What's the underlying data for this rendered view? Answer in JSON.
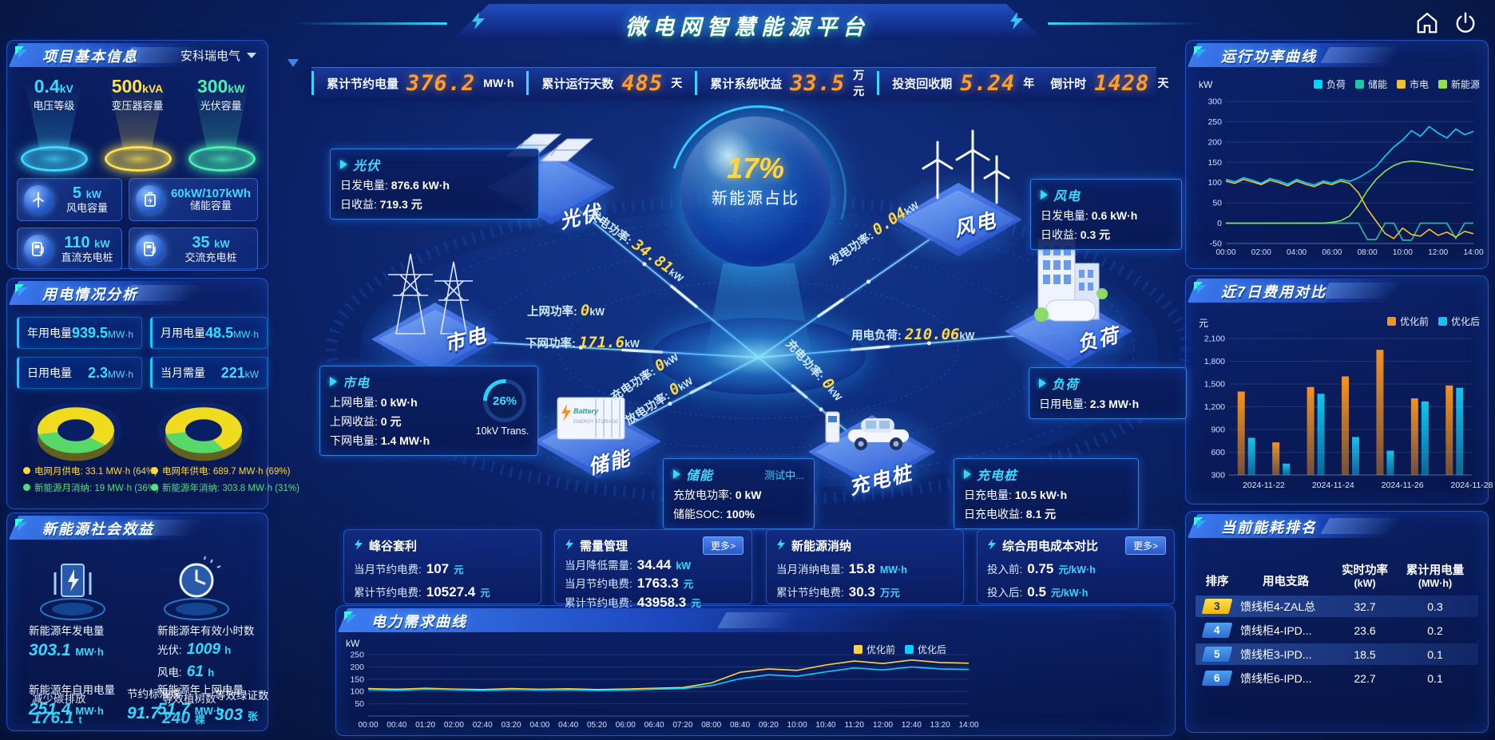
{
  "app": {
    "title": "微电网智慧能源平台"
  },
  "top_stats": [
    {
      "label": "累计节约电量",
      "value": "376.2",
      "unit": "MW·h"
    },
    {
      "label": "累计运行天数",
      "value": "485",
      "unit": "天"
    },
    {
      "label": "累计系统收益",
      "value": "33.5",
      "unit": "万元"
    },
    {
      "label": "投资回收期",
      "value": "5.24",
      "unit": "年"
    },
    {
      "label": "倒计时",
      "value": "1428",
      "unit": "天"
    }
  ],
  "project_info": {
    "title": "项目基本信息",
    "company": "安科瑞电气",
    "cones": [
      {
        "value": "0.4",
        "unit": "kV",
        "label": "电压等级",
        "color": "#3fd9ff"
      },
      {
        "value": "500",
        "unit": "kVA",
        "label": "变压器容量",
        "color": "#ffe24a"
      },
      {
        "value": "300",
        "unit": "kW",
        "label": "光伏容量",
        "color": "#49f2b2"
      }
    ],
    "cards": [
      {
        "icon": "wind-turbine-icon",
        "value": "5",
        "unit": "kW",
        "label": "风电容量"
      },
      {
        "icon": "battery-icon",
        "value": "60kW/107kWh",
        "unit": "",
        "label": "储能容量"
      },
      {
        "icon": "dc-charger-icon",
        "value": "110",
        "unit": "kW",
        "label": "直流充电桩"
      },
      {
        "icon": "ac-charger-icon",
        "value": "35",
        "unit": "kW",
        "label": "交流充电桩"
      }
    ]
  },
  "usage": {
    "title": "用电情况分析",
    "stats": [
      {
        "label": "年用电量",
        "value": "939.5",
        "unit": "MW·h"
      },
      {
        "label": "月用电量",
        "value": "48.5",
        "unit": "MW·h"
      },
      {
        "label": "日用电量",
        "value": "2.3",
        "unit": "MW·h"
      },
      {
        "label": "当月需量",
        "value": "221",
        "unit": "kW"
      }
    ],
    "donuts": [
      {
        "grid_pct": 64,
        "legend": [
          {
            "label": "电网月供电",
            "value": "33.1 MW·h (64%)",
            "color": "#ffd937"
          },
          {
            "label": "新能源月消纳",
            "value": "19 MW·h (36%)",
            "color": "#52e07c"
          }
        ]
      },
      {
        "grid_pct": 69,
        "legend": [
          {
            "label": "电网年供电",
            "value": "689.7 MW·h (69%)",
            "color": "#ffd937"
          },
          {
            "label": "新能源年消纳",
            "value": "303.8 MW·h (31%)",
            "color": "#52e07c"
          }
        ]
      }
    ]
  },
  "social": {
    "title": "新能源社会效益",
    "items": [
      {
        "label": "新能源年发电量",
        "value": "303.1",
        "unit": "MW·h"
      },
      {
        "label": "新能源年有效小时数",
        "value": "",
        "unit": ""
      },
      {
        "label": "光伏:",
        "value": "1009",
        "unit": "h"
      },
      {
        "label": "风电:",
        "value": "61",
        "unit": "h"
      },
      {
        "label": "新能源年自用电量",
        "value": "251.4",
        "unit": "MW·h"
      },
      {
        "label": "减少碳排放",
        "value": "176.1",
        "unit": "t"
      },
      {
        "label": "节约标准煤",
        "value": "91.7",
        "unit": "t"
      },
      {
        "label": "新能源年上网电量",
        "value": "51.7",
        "unit": "MW·h"
      },
      {
        "label": "等效植树数",
        "value": "240",
        "unit": "棵"
      },
      {
        "label": "等效绿证数",
        "value": "303",
        "unit": "张"
      }
    ]
  },
  "center": {
    "pct_value": "17%",
    "pct_label": "新能源占比",
    "transformer_pct": "26%",
    "transformer_label": "10kV Trans.",
    "nodes": {
      "pv": "光伏",
      "wind": "风电",
      "grid": "市电",
      "load": "负荷",
      "storage": "储能",
      "charger": "充电桩"
    },
    "cards": {
      "pv": {
        "title": "光伏",
        "lines": [
          {
            "k": "日发电量:",
            "v": "876.6 kW·h"
          },
          {
            "k": "日收益:",
            "v": "719.3 元"
          }
        ]
      },
      "wind": {
        "title": "风电",
        "lines": [
          {
            "k": "日发电量:",
            "v": "0.6 kW·h"
          },
          {
            "k": "日收益:",
            "v": "0.3 元"
          }
        ]
      },
      "grid": {
        "title": "市电",
        "lines": [
          {
            "k": "上网电量:",
            "v": "0 kW·h"
          },
          {
            "k": "上网收益:",
            "v": "0 元"
          },
          {
            "k": "下网电量:",
            "v": "1.4 MW·h"
          }
        ]
      },
      "load": {
        "title": "负荷",
        "lines": [
          {
            "k": "日用电量:",
            "v": "2.3 MW·h"
          }
        ]
      },
      "storage": {
        "title": "储能",
        "badge": "测试中...",
        "lines": [
          {
            "k": "充放电功率:",
            "v": "0 kW"
          },
          {
            "k": "储能SOC:",
            "v": "100%"
          }
        ]
      },
      "charger": {
        "title": "充电桩",
        "lines": [
          {
            "k": "日充电量:",
            "v": "10.5 kW·h"
          },
          {
            "k": "日充电收益:",
            "v": "8.1 元"
          }
        ]
      }
    },
    "flows": [
      {
        "label": "发电功率:",
        "value": "34.81",
        "unit": "kW"
      },
      {
        "label": "上网功率:",
        "value": "0",
        "unit": "kW"
      },
      {
        "label": "下网功率:",
        "value": "171.6",
        "unit": "kW"
      },
      {
        "label": "发电功率:",
        "value": "0.04",
        "unit": "kW"
      },
      {
        "label": "用电负荷:",
        "value": "210.06",
        "unit": "kW"
      },
      {
        "label": "充电功率:",
        "value": "0",
        "unit": "kW"
      },
      {
        "label": "放电功率:",
        "value": "0",
        "unit": "kW"
      },
      {
        "label": "充电功率:",
        "value": "0",
        "unit": "kW"
      }
    ]
  },
  "bottom_cards": [
    {
      "title": "峰谷套利",
      "more": null,
      "lines": [
        {
          "k": "当月节约电费:",
          "v": "107",
          "u": "元"
        },
        {
          "k": "累计节约电费:",
          "v": "10527.4",
          "u": "元"
        }
      ]
    },
    {
      "title": "需量管理",
      "more": "更多>",
      "lines": [
        {
          "k": "当月降低需量:",
          "v": "34.44",
          "u": "kW"
        },
        {
          "k": "当月节约电费:",
          "v": "1763.3",
          "u": "元"
        },
        {
          "k": "累计节约电费:",
          "v": "43958.3",
          "u": "元"
        }
      ]
    },
    {
      "title": "新能源消纳",
      "more": null,
      "lines": [
        {
          "k": "当月消纳电量:",
          "v": "15.8",
          "u": "MW·h"
        },
        {
          "k": "累计节约电费:",
          "v": "30.3",
          "u": "万元"
        }
      ]
    },
    {
      "title": "综合用电成本对比",
      "more": "更多>",
      "lines": [
        {
          "k": "投入前:",
          "v": "0.75",
          "u": "元/kW·h"
        },
        {
          "k": "投入后:",
          "v": "0.5",
          "u": "元/kW·h"
        }
      ]
    }
  ],
  "right_panels": {
    "p1": "运行功率曲线",
    "p2": "近7日费用对比",
    "p3": "当前能耗排名"
  },
  "demand_title": "电力需求曲线",
  "ranking": {
    "title": "当前能耗排名",
    "headers": [
      {
        "t": "排序"
      },
      {
        "t": "用电支路"
      },
      {
        "t": "实时功率",
        "s": "(kW)"
      },
      {
        "t": "累计用电量",
        "s": "(MW·h)"
      }
    ],
    "rows": [
      {
        "rank": "3",
        "branch": "馈线柜4-ZAL总",
        "power": "32.7",
        "energy": "0.3",
        "highlight": true,
        "rank_color": "yellow"
      },
      {
        "rank": "4",
        "branch": "馈线柜4-IPD...",
        "power": "23.6",
        "energy": "0.2",
        "highlight": false,
        "rank_color": "blue"
      },
      {
        "rank": "5",
        "branch": "馈线柜3-IPD...",
        "power": "18.5",
        "energy": "0.1",
        "highlight": true,
        "rank_color": "blue"
      },
      {
        "rank": "6",
        "branch": "馈线柜6-IPD...",
        "power": "22.7",
        "energy": "0.1",
        "highlight": false,
        "rank_color": "blue"
      }
    ]
  },
  "chart_data": [
    {
      "id": "power-curve",
      "type": "line",
      "title": "运行功率曲线",
      "ylabel": "kW",
      "ylim": [
        -50,
        300
      ],
      "yticks": [
        300,
        250,
        200,
        150,
        100,
        50,
        0,
        -50
      ],
      "xEvery": 4,
      "legend_position": "top-right",
      "grid": true,
      "x": [
        "00:00",
        "00:30",
        "01:00",
        "01:30",
        "02:00",
        "02:30",
        "03:00",
        "03:30",
        "04:00",
        "04:30",
        "05:00",
        "05:30",
        "06:00",
        "06:30",
        "07:00",
        "07:30",
        "08:00",
        "08:30",
        "09:00",
        "09:30",
        "10:00",
        "10:30",
        "11:00",
        "11:30",
        "12:00",
        "12:30",
        "13:00",
        "13:30",
        "14:00"
      ],
      "series": [
        {
          "name": "负荷",
          "color": "#00d4ff",
          "values": [
            108,
            102,
            112,
            106,
            98,
            110,
            104,
            96,
            108,
            100,
            94,
            104,
            99,
            108,
            103,
            112,
            125,
            140,
            165,
            188,
            205,
            228,
            214,
            238,
            222,
            210,
            232,
            218,
            226
          ]
        },
        {
          "name": "储能",
          "color": "#17c9a3",
          "values": [
            0,
            0,
            0,
            0,
            0,
            0,
            0,
            0,
            0,
            0,
            0,
            0,
            0,
            0,
            0,
            0,
            -40,
            -40,
            0,
            0,
            -42,
            -42,
            0,
            0,
            0,
            0,
            -38,
            0,
            0
          ]
        },
        {
          "name": "市电",
          "color": "#f2c12e",
          "values": [
            104,
            98,
            108,
            102,
            95,
            106,
            100,
            92,
            104,
            96,
            90,
            100,
            95,
            104,
            98,
            75,
            35,
            5,
            -25,
            -38,
            -12,
            -28,
            -32,
            -15,
            -30,
            -22,
            -34,
            -20,
            -26
          ]
        },
        {
          "name": "新能源",
          "color": "#8de04e",
          "values": [
            0,
            0,
            0,
            0,
            0,
            0,
            0,
            0,
            0,
            0,
            0,
            0,
            2,
            6,
            18,
            45,
            80,
            108,
            128,
            142,
            150,
            153,
            151,
            148,
            145,
            141,
            138,
            134,
            131
          ]
        }
      ]
    },
    {
      "id": "cost-compare",
      "type": "bar",
      "title": "近7日费用对比",
      "ylabel": "元",
      "ylim": [
        300,
        2100
      ],
      "xEvery": 2,
      "legend_position": "top-right",
      "grid": true,
      "yticks": [
        {
          "v": 2100,
          "l": "2,100"
        },
        {
          "v": 1800,
          "l": "1,800"
        },
        {
          "v": 1500,
          "l": "1,500"
        },
        {
          "v": 1200,
          "l": "1,200"
        },
        {
          "v": 900,
          "l": "900"
        },
        {
          "v": 600,
          "l": "600"
        },
        {
          "v": 300,
          "l": "300"
        }
      ],
      "categories": [
        "2024-11-22",
        "2024-11-23",
        "2024-11-24",
        "2024-11-25",
        "2024-11-26",
        "2024-11-27",
        "2024-11-28"
      ],
      "series": [
        {
          "name": "优化前",
          "color": "#f6921e",
          "values": [
            1400,
            730,
            1460,
            1600,
            1950,
            1310,
            1480
          ]
        },
        {
          "name": "优化后",
          "color": "#12c4ec",
          "values": [
            790,
            450,
            1370,
            800,
            620,
            1270,
            1450
          ]
        }
      ]
    },
    {
      "id": "demand-curve",
      "type": "line",
      "title": "电力需求曲线",
      "ylabel": "kW",
      "ylim": [
        0,
        260
      ],
      "yticks": [
        250,
        200,
        150,
        100,
        50
      ],
      "xEvery": 1,
      "legend_position": "top-right",
      "grid": true,
      "x": [
        "00:00",
        "00:40",
        "01:20",
        "02:00",
        "02:40",
        "03:20",
        "04:00",
        "04:40",
        "05:20",
        "06:00",
        "06:40",
        "07:20",
        "08:00",
        "08:40",
        "09:20",
        "10:00",
        "10:40",
        "11:20",
        "12:00",
        "12:40",
        "13:20",
        "14:00"
      ],
      "series": [
        {
          "name": "优化前",
          "color": "#ffd43a",
          "values": [
            112,
            109,
            113,
            110,
            108,
            112,
            109,
            111,
            108,
            110,
            113,
            116,
            135,
            178,
            192,
            186,
            208,
            224,
            214,
            228,
            218,
            215
          ]
        },
        {
          "name": "优化后",
          "color": "#00d4ff",
          "values": [
            108,
            105,
            109,
            107,
            104,
            108,
            106,
            107,
            104,
            106,
            109,
            112,
            124,
            152,
            168,
            162,
            180,
            196,
            188,
            200,
            192,
            190
          ]
        }
      ]
    }
  ]
}
